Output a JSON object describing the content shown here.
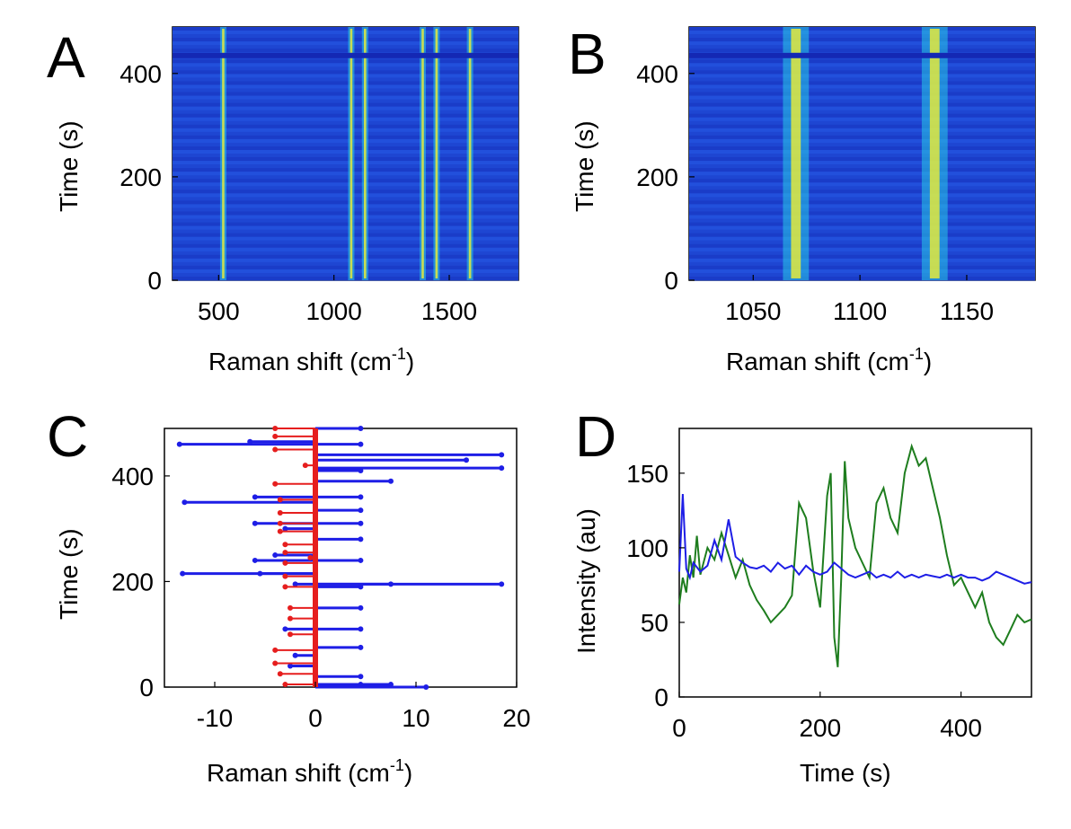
{
  "chart_data": [
    {
      "panel": "A",
      "type": "heatmap",
      "xlabel": "Raman shift (cm",
      "xlabel_sup": "-1",
      "xlabel_tail": ")",
      "ylabel": "Time (s)",
      "xlim": [
        300,
        1800
      ],
      "ylim": [
        0,
        490
      ],
      "xticks": [
        "500",
        "1000",
        "1500"
      ],
      "xtick_values": [
        500,
        1000,
        1500
      ],
      "yticks": [
        "0",
        "200",
        "400"
      ],
      "ytick_values": [
        0,
        200,
        400
      ],
      "colormap": [
        "#1428b4",
        "#1e64e6",
        "#28c8e6",
        "#f0f032",
        "#e63c14"
      ],
      "peaks_cm1": [
        520,
        1075,
        1135,
        1385,
        1445,
        1590
      ]
    },
    {
      "panel": "B",
      "type": "heatmap",
      "xlabel": "Raman shift (cm",
      "xlabel_sup": "-1",
      "xlabel_tail": ")",
      "ylabel": "Time (s)",
      "xlim": [
        1020,
        1182
      ],
      "ylim": [
        0,
        490
      ],
      "xticks": [
        "1050",
        "1100",
        "1150"
      ],
      "xtick_values": [
        1050,
        1100,
        1150
      ],
      "yticks": [
        "0",
        "200",
        "400"
      ],
      "ytick_values": [
        0,
        200,
        400
      ],
      "colormap": [
        "#1428b4",
        "#1e64e6",
        "#28c8e6",
        "#f0f032",
        "#e63c14"
      ],
      "peaks_cm1": [
        1070,
        1135
      ]
    },
    {
      "panel": "C",
      "type": "scatter",
      "xlabel": "Raman shift (cm",
      "xlabel_sup": "-1",
      "xlabel_tail": ")",
      "ylabel": "Time (s)",
      "xlim": [
        -15,
        20
      ],
      "ylim": [
        0,
        490
      ],
      "xticks": [
        "-10",
        "0",
        "10",
        "20"
      ],
      "xtick_values": [
        -10,
        0,
        10,
        20
      ],
      "yticks": [
        "0",
        "200",
        "400"
      ],
      "ytick_values": [
        0,
        200,
        400
      ],
      "series": [
        {
          "color": "#1e1ee6",
          "points": [
            [
              -13.5,
              460
            ],
            [
              -13.2,
              215
            ],
            [
              -13.0,
              350
            ],
            [
              -6.5,
              465
            ],
            [
              -6.0,
              360
            ],
            [
              -6.0,
              310
            ],
            [
              -6.0,
              240
            ],
            [
              -5.5,
              215
            ],
            [
              -4.0,
              250
            ],
            [
              -3.0,
              300
            ],
            [
              -3.0,
              110
            ],
            [
              -2.5,
              40
            ],
            [
              -2.0,
              195
            ],
            [
              -2.0,
              60
            ],
            [
              4.5,
              490
            ],
            [
              4.5,
              460
            ],
            [
              4.5,
              410
            ],
            [
              4.5,
              360
            ],
            [
              4.5,
              335
            ],
            [
              4.5,
              310
            ],
            [
              4.5,
              280
            ],
            [
              4.5,
              240
            ],
            [
              4.5,
              190
            ],
            [
              4.5,
              150
            ],
            [
              4.5,
              110
            ],
            [
              4.5,
              75
            ],
            [
              4.5,
              20
            ],
            [
              4.5,
              5
            ],
            [
              7.5,
              390
            ],
            [
              7.5,
              195
            ],
            [
              7.5,
              5
            ],
            [
              11.0,
              0
            ],
            [
              15.0,
              430
            ],
            [
              18.5,
              440
            ],
            [
              18.5,
              415
            ],
            [
              18.5,
              195
            ]
          ]
        },
        {
          "color": "#e61e1e",
          "points": [
            [
              -4.0,
              490
            ],
            [
              -4.0,
              475
            ],
            [
              -4.0,
              450
            ],
            [
              -4.0,
              385
            ],
            [
              -3.5,
              355
            ],
            [
              -3.5,
              330
            ],
            [
              -3.5,
              310
            ],
            [
              -3.5,
              295
            ],
            [
              -3.0,
              270
            ],
            [
              -3.0,
              255
            ],
            [
              -3.0,
              235
            ],
            [
              -3.0,
              210
            ],
            [
              -3.0,
              190
            ],
            [
              -2.5,
              150
            ],
            [
              -2.5,
              130
            ],
            [
              -2.5,
              100
            ],
            [
              -4.0,
              70
            ],
            [
              -4.0,
              45
            ],
            [
              -3.5,
              25
            ],
            [
              -3.0,
              5
            ],
            [
              -0.5,
              245
            ],
            [
              -1.0,
              420
            ]
          ]
        }
      ]
    },
    {
      "panel": "D",
      "type": "line",
      "xlabel": "Time (s)",
      "ylabel": "Intensity (au)",
      "xlim": [
        0,
        500
      ],
      "ylim": [
        0,
        180
      ],
      "xticks": [
        "0",
        "200",
        "400"
      ],
      "xtick_values": [
        0,
        200,
        400
      ],
      "yticks": [
        "0",
        "50",
        "100",
        "150"
      ],
      "ytick_values": [
        0,
        50,
        100,
        150
      ],
      "series": [
        {
          "color": "#1e1ee6",
          "x": [
            0,
            5,
            10,
            15,
            20,
            30,
            40,
            50,
            60,
            70,
            80,
            90,
            100,
            110,
            120,
            130,
            140,
            150,
            160,
            170,
            180,
            190,
            200,
            210,
            220,
            230,
            240,
            250,
            260,
            270,
            280,
            290,
            300,
            310,
            320,
            330,
            340,
            350,
            360,
            370,
            380,
            390,
            400,
            410,
            420,
            430,
            440,
            450,
            460,
            470,
            480,
            490,
            500
          ],
          "y": [
            84,
            136,
            86,
            80,
            90,
            84,
            88,
            105,
            92,
            119,
            94,
            90,
            87,
            86,
            88,
            84,
            90,
            86,
            88,
            82,
            88,
            84,
            82,
            84,
            90,
            86,
            82,
            80,
            82,
            84,
            80,
            82,
            80,
            84,
            80,
            82,
            80,
            82,
            81,
            80,
            82,
            80,
            82,
            80,
            80,
            78,
            80,
            84,
            82,
            80,
            78,
            76,
            77
          ]
        },
        {
          "color": "#1e7d1e",
          "x": [
            0,
            5,
            10,
            15,
            20,
            25,
            30,
            40,
            50,
            60,
            70,
            80,
            90,
            100,
            110,
            120,
            130,
            140,
            150,
            160,
            170,
            180,
            190,
            200,
            210,
            215,
            220,
            225,
            230,
            235,
            240,
            250,
            260,
            270,
            280,
            290,
            300,
            310,
            320,
            330,
            340,
            350,
            360,
            370,
            380,
            390,
            400,
            410,
            420,
            430,
            440,
            450,
            460,
            470,
            480,
            490,
            500
          ],
          "y": [
            62,
            80,
            70,
            95,
            80,
            108,
            82,
            100,
            92,
            110,
            95,
            80,
            92,
            75,
            65,
            58,
            50,
            55,
            60,
            68,
            130,
            120,
            85,
            60,
            135,
            150,
            40,
            20,
            80,
            158,
            120,
            100,
            90,
            80,
            130,
            140,
            120,
            110,
            150,
            168,
            155,
            160,
            140,
            120,
            95,
            75,
            80,
            70,
            60,
            70,
            50,
            40,
            35,
            45,
            55,
            50,
            52
          ]
        }
      ]
    }
  ]
}
